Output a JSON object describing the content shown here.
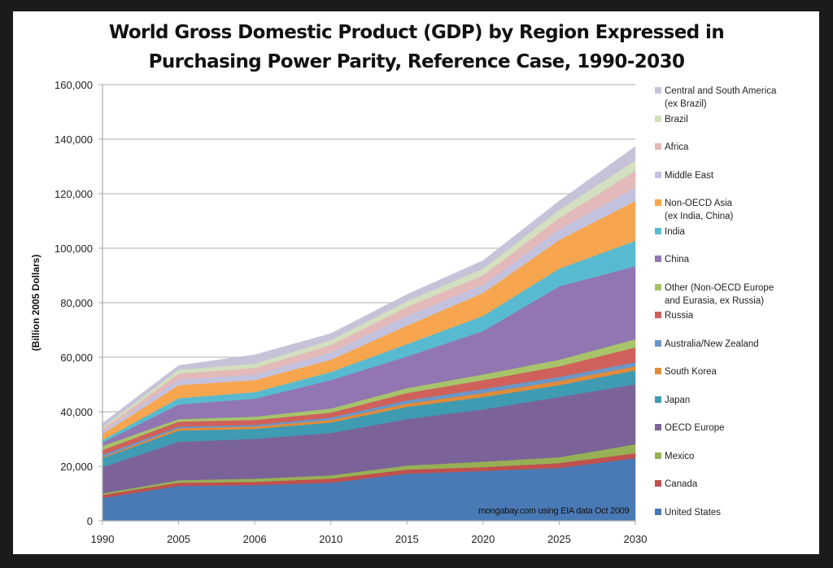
{
  "chart_data": {
    "type": "area",
    "stacked": true,
    "title": "World Gross Domestic Product (GDP) by Region Expressed in Purchasing Power Parity, Reference Case, 1990-2030",
    "title_lines": [
      "World Gross Domestic Product (GDP) by Region Expressed in",
      "Purchasing Power Parity, Reference Case, 1990-2030"
    ],
    "xlabel": "",
    "ylabel": "(Billion 2005 Dollars)",
    "ylim": [
      0,
      160000
    ],
    "yticks": [
      0,
      20000,
      40000,
      60000,
      80000,
      100000,
      120000,
      140000,
      160000
    ],
    "ytick_labels": [
      "0",
      "20,000",
      "40,000",
      "60,000",
      "80,000",
      "100,000",
      "120,000",
      "140,000",
      "160,000"
    ],
    "categories": [
      "1990",
      "2005",
      "2006",
      "2010",
      "2015",
      "2020",
      "2025",
      "2030"
    ],
    "grid": true,
    "legend_position": "right",
    "annotation": "mongabay.com using EIA data Oct 2009",
    "series": [
      {
        "name": "United States",
        "color": "#4a7ab5",
        "values": [
          8400,
          12800,
          13100,
          14000,
          17300,
          18300,
          19400,
          23000
        ]
      },
      {
        "name": "Canada",
        "color": "#c0504d",
        "values": [
          1100,
          1200,
          1200,
          1500,
          1500,
          1400,
          1800,
          1800
        ]
      },
      {
        "name": "Mexico",
        "color": "#97b055",
        "values": [
          600,
          900,
          1200,
          1200,
          1500,
          2000,
          2100,
          3300
        ]
      },
      {
        "name": "OECD Europe",
        "color": "#7b6399",
        "values": [
          9600,
          14100,
          14600,
          15500,
          17000,
          19200,
          22100,
          22000
        ]
      },
      {
        "name": "Japan",
        "color": "#3f9bb2",
        "values": [
          3300,
          4100,
          3600,
          3900,
          4500,
          4500,
          4400,
          5100
        ]
      },
      {
        "name": "South Korea",
        "color": "#e08b3a",
        "values": [
          300,
          900,
          900,
          900,
          1200,
          1500,
          1500,
          1500
        ]
      },
      {
        "name": "Australia/New Zealand",
        "color": "#6a97c7",
        "values": [
          900,
          600,
          600,
          900,
          1200,
          1500,
          1500,
          1500
        ]
      },
      {
        "name": "Russia",
        "color": "#d0605a",
        "values": [
          1800,
          1800,
          1800,
          1800,
          2700,
          3200,
          3900,
          5400
        ]
      },
      {
        "name": "Other (Non-OECD Europe\nand Eurasia, ex Russia)",
        "color": "#a7c46a",
        "values": [
          1500,
          900,
          1200,
          1500,
          1800,
          2100,
          2400,
          3000
        ]
      },
      {
        "name": "China",
        "color": "#9276b2",
        "values": [
          1200,
          5400,
          6600,
          10400,
          11600,
          15900,
          26900,
          26800
        ]
      },
      {
        "name": "India",
        "color": "#58bad0",
        "values": [
          900,
          2300,
          2400,
          3000,
          4500,
          5600,
          6500,
          9300
        ]
      },
      {
        "name": "Non-OECD Asia\n(ex India, China)",
        "color": "#f7a64f",
        "values": [
          2300,
          4800,
          4400,
          4500,
          6800,
          8400,
          10500,
          14600
        ]
      },
      {
        "name": "Middle East",
        "color": "#c3c2de",
        "values": [
          900,
          2100,
          2100,
          2700,
          3600,
          3000,
          3900,
          5100
        ]
      },
      {
        "name": "Africa",
        "color": "#e4b9b9",
        "values": [
          900,
          2100,
          2400,
          2700,
          3300,
          3500,
          4100,
          6000
        ]
      },
      {
        "name": "Brazil",
        "color": "#d3dfbe",
        "values": [
          600,
          1500,
          1500,
          1800,
          2100,
          2400,
          3000,
          3800
        ]
      },
      {
        "name": "Central and South America\n(ex Brazil)",
        "color": "#c6c3d9",
        "values": [
          1500,
          1500,
          3300,
          2400,
          2400,
          3000,
          3300,
          5100
        ]
      }
    ]
  }
}
